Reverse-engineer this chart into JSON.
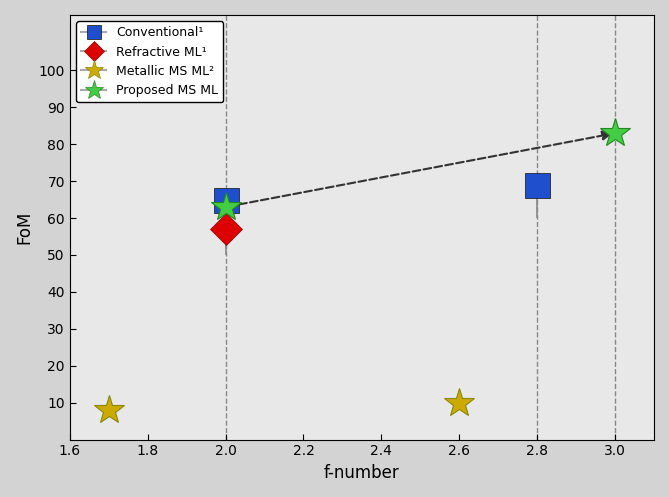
{
  "title": "",
  "xlabel": "f-number",
  "ylabel": "FoM",
  "xlim": [
    1.6,
    3.1
  ],
  "ylim": [
    0,
    115
  ],
  "yticks": [
    10,
    20,
    30,
    40,
    50,
    60,
    70,
    80,
    90,
    100
  ],
  "xticks": [
    1.6,
    1.8,
    2.0,
    2.2,
    2.4,
    2.6,
    2.8,
    3.0
  ],
  "background_color": "#d3d3d3",
  "plot_bg_color": "#e8e8e8",
  "conventional": {
    "x": [
      2.0,
      2.8
    ],
    "y": [
      65,
      69
    ],
    "yerr_low": [
      15,
      9
    ],
    "yerr_high": [
      1,
      3
    ],
    "color": "#1f4fcc",
    "marker": "s",
    "markersize": 18,
    "label": "Conventional"
  },
  "refractive": {
    "x": [
      2.0
    ],
    "y": [
      57
    ],
    "yerr_low": [
      5
    ],
    "yerr_high": [
      3
    ],
    "color": "#dd0000",
    "marker": "D",
    "markersize": 16,
    "label": "Refractive ML"
  },
  "metallic": {
    "x": [
      1.7,
      2.6
    ],
    "y": [
      8,
      10
    ],
    "color": "#ccaa00",
    "marker": "*",
    "markersize": 22,
    "label": "Metallic MS ML"
  },
  "proposed": {
    "x": [
      2.0,
      3.0
    ],
    "y": [
      63,
      83
    ],
    "color": "#44cc44",
    "marker": "*",
    "markersize": 22,
    "label": "Proposed MS ML",
    "dashed_line_color": "#333333"
  },
  "vlines": [
    2.0,
    2.8,
    3.0
  ],
  "vline_color": "#888888",
  "vline_style": "--",
  "legend_loc": "upper left",
  "line_color": "#aaaaaa",
  "superscript1": "¹",
  "superscript2": "²"
}
